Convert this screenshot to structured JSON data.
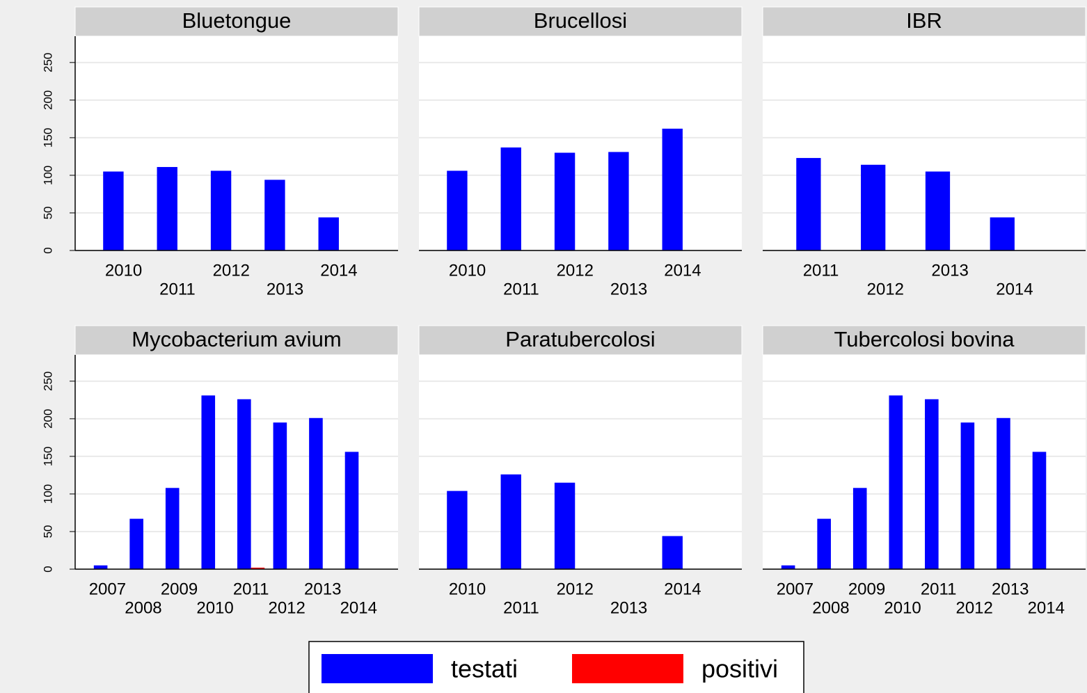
{
  "chart_data": {
    "type": "bar",
    "legend": [
      {
        "name": "testati",
        "color": "#0000ff"
      },
      {
        "name": "positivi",
        "color": "#ff0000"
      }
    ],
    "ylim": [
      0,
      285
    ],
    "yticks": [
      0,
      50,
      100,
      150,
      200,
      250
    ],
    "grid": true,
    "panels": [
      {
        "title": "Bluetongue",
        "categories": [
          "2010",
          "2011",
          "2012",
          "2013",
          "2014"
        ],
        "series": [
          {
            "values": [
              105,
              111,
              106,
              94,
              44
            ]
          },
          {
            "values": [
              0,
              0,
              0,
              0,
              0
            ]
          }
        ]
      },
      {
        "title": "Brucellosi",
        "categories": [
          "2010",
          "2011",
          "2012",
          "2013",
          "2014"
        ],
        "series": [
          {
            "values": [
              106,
              137,
              130,
              131,
              162
            ]
          },
          {
            "values": [
              0,
              0,
              0,
              0,
              0
            ]
          }
        ]
      },
      {
        "title": "IBR",
        "categories": [
          "2011",
          "2012",
          "2013",
          "2014"
        ],
        "series": [
          {
            "values": [
              123,
              114,
              105,
              44
            ]
          },
          {
            "values": [
              0,
              0,
              0,
              0
            ]
          }
        ]
      },
      {
        "title": "Mycobacterium avium",
        "categories": [
          "2007",
          "2008",
          "2009",
          "2010",
          "2011",
          "2012",
          "2013",
          "2014"
        ],
        "series": [
          {
            "values": [
              5,
              67,
              108,
              231,
              226,
              195,
              201,
              156
            ]
          },
          {
            "values": [
              0,
              0,
              0,
              0,
              2,
              0,
              0,
              0
            ]
          }
        ]
      },
      {
        "title": "Paratubercolosi",
        "categories": [
          "2010",
          "2011",
          "2012",
          "2013",
          "2014"
        ],
        "series": [
          {
            "values": [
              104,
              126,
              115,
              0,
              44
            ]
          },
          {
            "values": [
              0,
              0,
              0,
              0,
              0
            ]
          }
        ]
      },
      {
        "title": "Tubercolosi bovina",
        "categories": [
          "2007",
          "2008",
          "2009",
          "2010",
          "2011",
          "2012",
          "2013",
          "2014"
        ],
        "series": [
          {
            "values": [
              5,
              67,
              108,
              231,
              226,
              195,
              201,
              156
            ]
          },
          {
            "values": [
              0,
              0,
              0,
              0,
              0,
              0,
              0,
              0
            ]
          }
        ]
      }
    ]
  }
}
